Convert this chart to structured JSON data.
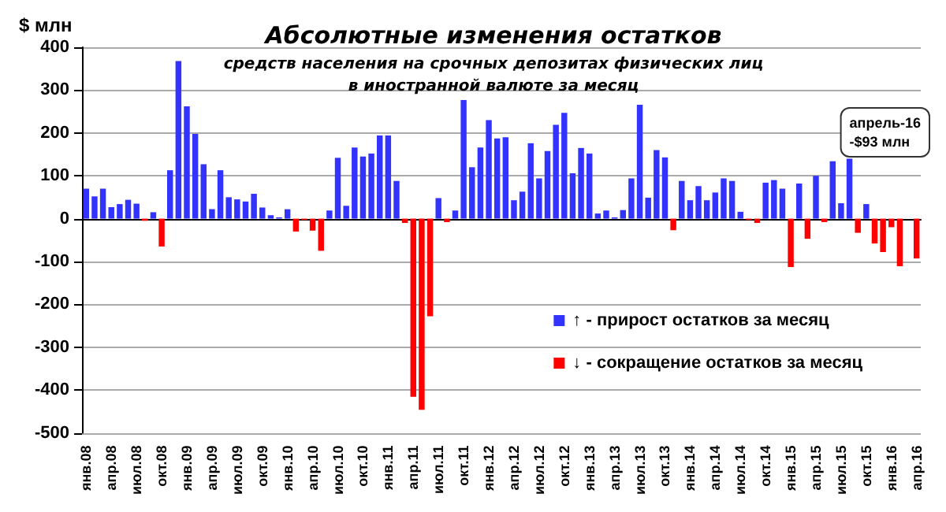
{
  "chart_data": {
    "type": "bar",
    "title": "Абсолютные изменения остатков",
    "subtitle": "средств населения на срочных депозитах физических лиц\nв иностранной валюте за месяц",
    "ylabel": "$ млн",
    "categories": [
      "янв.08",
      null,
      null,
      "апр.08",
      null,
      null,
      "июл.08",
      null,
      null,
      "окт.08",
      null,
      null,
      "янв.09",
      null,
      null,
      "апр.09",
      null,
      null,
      "июл.09",
      null,
      null,
      "окт.09",
      null,
      null,
      "янв.10",
      null,
      null,
      "апр.10",
      null,
      null,
      "июл.10",
      null,
      null,
      "окт.10",
      null,
      null,
      "янв.11",
      null,
      null,
      "апр.11",
      null,
      null,
      "июл.11",
      null,
      null,
      "окт.11",
      null,
      null,
      "янв.12",
      null,
      null,
      "апр.12",
      null,
      null,
      "июл.12",
      null,
      null,
      "окт.12",
      null,
      null,
      "янв.13",
      null,
      null,
      "апр.13",
      null,
      null,
      "июл.13",
      null,
      null,
      "окт.13",
      null,
      null,
      "янв.14",
      null,
      null,
      "апр.14",
      null,
      null,
      "июл.14",
      null,
      null,
      "окт.14",
      null,
      null,
      "янв.15",
      null,
      null,
      "апр.15",
      null,
      null,
      "июл.15",
      null,
      null,
      "окт.15",
      null,
      null,
      "янв.16",
      null,
      null,
      "апр.16"
    ],
    "stacked": true,
    "series": [
      {
        "name": "↑ - прирост остатков за месяц",
        "color": "#3333ff",
        "values": [
          70,
          52,
          70,
          27,
          34,
          44,
          35,
          null,
          15,
          null,
          113,
          368,
          262,
          198,
          127,
          22,
          113,
          50,
          45,
          40,
          58,
          26,
          8,
          3,
          22,
          null,
          null,
          null,
          null,
          19,
          142,
          30,
          166,
          145,
          152,
          194,
          194,
          88,
          null,
          null,
          null,
          null,
          48,
          null,
          19,
          277,
          120,
          166,
          230,
          187,
          190,
          43,
          63,
          176,
          94,
          158,
          219,
          247,
          106,
          165,
          152,
          12,
          19,
          3,
          20,
          94,
          266,
          49,
          160,
          143,
          null,
          88,
          43,
          76,
          43,
          61,
          94,
          88,
          16,
          null,
          null,
          84,
          90,
          70,
          null,
          82,
          null,
          100,
          null,
          134,
          36,
          140,
          null,
          34,
          null,
          null,
          null,
          null,
          null,
          null
        ]
      },
      {
        "name": "↓ - сокращение остатков за месяц",
        "color": "#ff0000",
        "values": [
          null,
          null,
          null,
          null,
          null,
          null,
          null,
          -5,
          null,
          -65,
          null,
          null,
          null,
          null,
          null,
          null,
          null,
          null,
          null,
          null,
          null,
          null,
          null,
          null,
          null,
          -30,
          -3,
          -28,
          -75,
          null,
          null,
          null,
          null,
          null,
          null,
          null,
          null,
          null,
          -10,
          -416,
          -446,
          -228,
          null,
          -8,
          null,
          null,
          null,
          null,
          null,
          null,
          null,
          null,
          null,
          null,
          null,
          null,
          null,
          null,
          null,
          null,
          null,
          null,
          null,
          null,
          null,
          null,
          null,
          null,
          null,
          null,
          -27,
          null,
          null,
          null,
          null,
          null,
          null,
          null,
          null,
          -3,
          -10,
          null,
          null,
          null,
          -113,
          null,
          -47,
          null,
          -8,
          null,
          null,
          null,
          -33,
          null,
          -58,
          -78,
          -20,
          -111,
          null,
          -93
        ]
      }
    ],
    "ylim": [
      -500,
      400
    ],
    "yticks": [
      -500,
      -400,
      -300,
      -200,
      -100,
      0,
      100,
      200,
      300,
      400
    ],
    "grid": "y",
    "legend": "right",
    "annotations": [
      "апрель-16\n-$93 млн"
    ]
  }
}
